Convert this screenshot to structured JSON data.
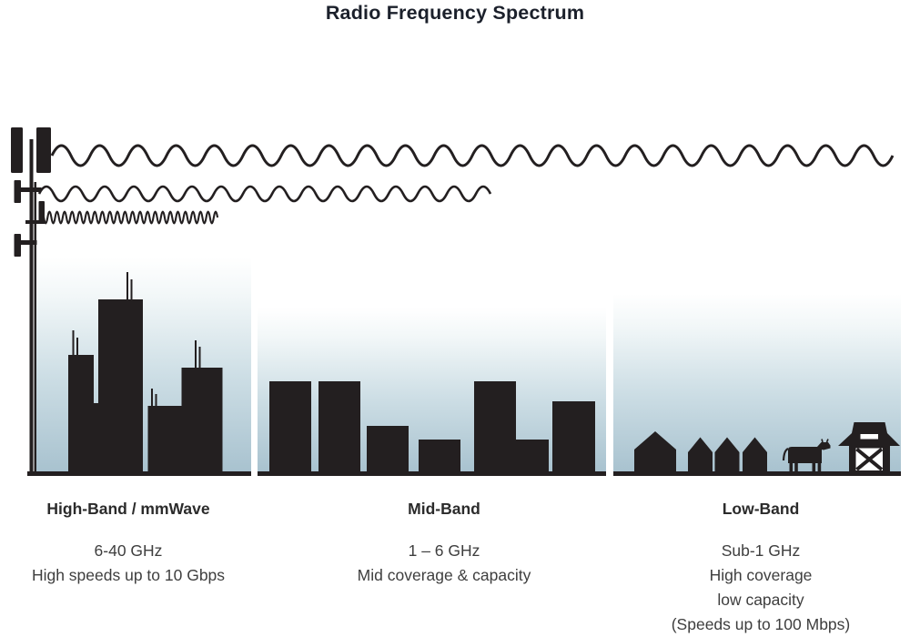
{
  "title": "Radio Frequency Spectrum",
  "sections": [
    {
      "id": "high-band",
      "label": "High-Band / mmWave",
      "lines": [
        "6-40 GHz",
        "High speeds up to 10 Gbps"
      ]
    },
    {
      "id": "mid-band",
      "label": "Mid-Band",
      "lines": [
        "1 – 6 GHz",
        "Mid coverage & capacity"
      ]
    },
    {
      "id": "low-band",
      "label": "Low-Band",
      "lines": [
        "Sub-1 GHz",
        "High coverage",
        "low capacity",
        "(Speeds up to 100 Mbps)"
      ]
    }
  ],
  "icons": [
    "cell-tower-icon",
    "long-wavelength-wave-icon",
    "medium-wavelength-wave-icon",
    "short-wavelength-wave-icon",
    "skyscraper-icons",
    "mid-rise-building-icons",
    "house-icons",
    "cow-icon",
    "barn-icon"
  ],
  "colors": {
    "ink": "#231f20",
    "title_text": "#1b202b",
    "label_text": "#2b2b2b",
    "body_text": "#3e3e3e",
    "sky_top": "#ffffff",
    "sky_bottom": "#a8c2cf",
    "background": "#ffffff"
  }
}
